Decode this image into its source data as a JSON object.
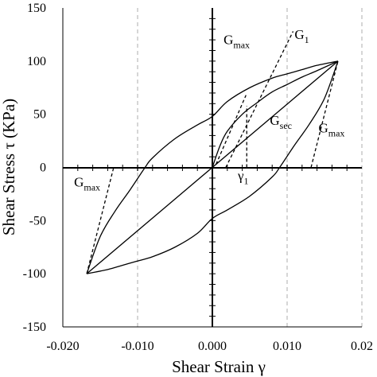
{
  "chart_data": {
    "type": "line",
    "xlabel": "Shear Strain γ",
    "ylabel": "Shear Stress τ (KPa)",
    "xlim": [
      -0.02,
      0.02
    ],
    "ylim": [
      -150,
      150
    ],
    "grid": "x-only dashed",
    "x_ticks": [
      -0.02,
      -0.01,
      0.0,
      0.01,
      0.02
    ],
    "x_tick_labels": [
      "-0.020",
      "-0.010",
      "0.000",
      "0.010",
      "0.02"
    ],
    "y_ticks": [
      -150,
      -100,
      -50,
      0,
      50,
      100,
      150
    ],
    "y_tick_labels": [
      "-150",
      "-100",
      "-50",
      "0",
      "50",
      "100",
      "150"
    ],
    "series": [
      {
        "style": "solid",
        "x": [
          0,
          0.001,
          0.002,
          0.004,
          0.006,
          0.008,
          0.01,
          0.012,
          0.014,
          0.0168
        ],
        "y": [
          0,
          20,
          34,
          50,
          61,
          71,
          78,
          85,
          91,
          100
        ]
      },
      {
        "style": "solid",
        "x": [
          0.0168,
          0.014,
          0.012,
          0.01,
          0.008,
          0.005,
          0.002,
          0,
          -0.002,
          -0.005,
          -0.008,
          -0.009,
          -0.011,
          -0.013,
          -0.015,
          -0.0168
        ],
        "y": [
          100,
          96,
          92,
          88,
          84,
          75,
          62,
          48,
          40,
          27,
          9,
          0,
          -21,
          -41,
          -65,
          -100
        ]
      },
      {
        "style": "solid",
        "x": [
          -0.0168,
          -0.014,
          -0.012,
          -0.01,
          -0.008,
          -0.005,
          -0.002,
          0,
          0.002,
          0.005,
          0.008,
          0.009,
          0.011,
          0.013,
          0.015,
          0.0168
        ],
        "y": [
          -100,
          -96,
          -92,
          -88,
          -84,
          -75,
          -62,
          -48,
          -40,
          -27,
          -9,
          0,
          21,
          41,
          65,
          100
        ]
      },
      {
        "style": "solid",
        "x": [
          -0.0168,
          0.0168
        ],
        "y": [
          -100,
          100
        ]
      },
      {
        "style": "dashed",
        "x": [
          0.0005,
          0.0045
        ],
        "y": [
          3,
          68
        ]
      },
      {
        "style": "dashed",
        "x": [
          0.0018,
          0.0108
        ],
        "y": [
          0,
          128
        ]
      },
      {
        "style": "dashed",
        "x": [
          0.0132,
          0.0168
        ],
        "y": [
          0,
          100
        ]
      },
      {
        "style": "dashed",
        "x": [
          -0.0168,
          -0.0132
        ],
        "y": [
          -100,
          0
        ]
      },
      {
        "style": "dashed",
        "x": [
          0.0046,
          0.0046
        ],
        "y": [
          0,
          58
        ]
      }
    ],
    "annotations": [
      {
        "main": "G",
        "sub": "max",
        "x": 0.0015,
        "y": 116
      },
      {
        "main": "G",
        "sub": "1",
        "x": 0.011,
        "y": 121
      },
      {
        "main": "G",
        "sub": "sec",
        "x": 0.0077,
        "y": 40
      },
      {
        "main": "G",
        "sub": "max",
        "x": 0.0142,
        "y": 33
      },
      {
        "main": "G",
        "sub": "max",
        "x": -0.0185,
        "y": -18
      },
      {
        "main": "γ",
        "sub": "1",
        "x": 0.0034,
        "y": -12
      }
    ]
  }
}
